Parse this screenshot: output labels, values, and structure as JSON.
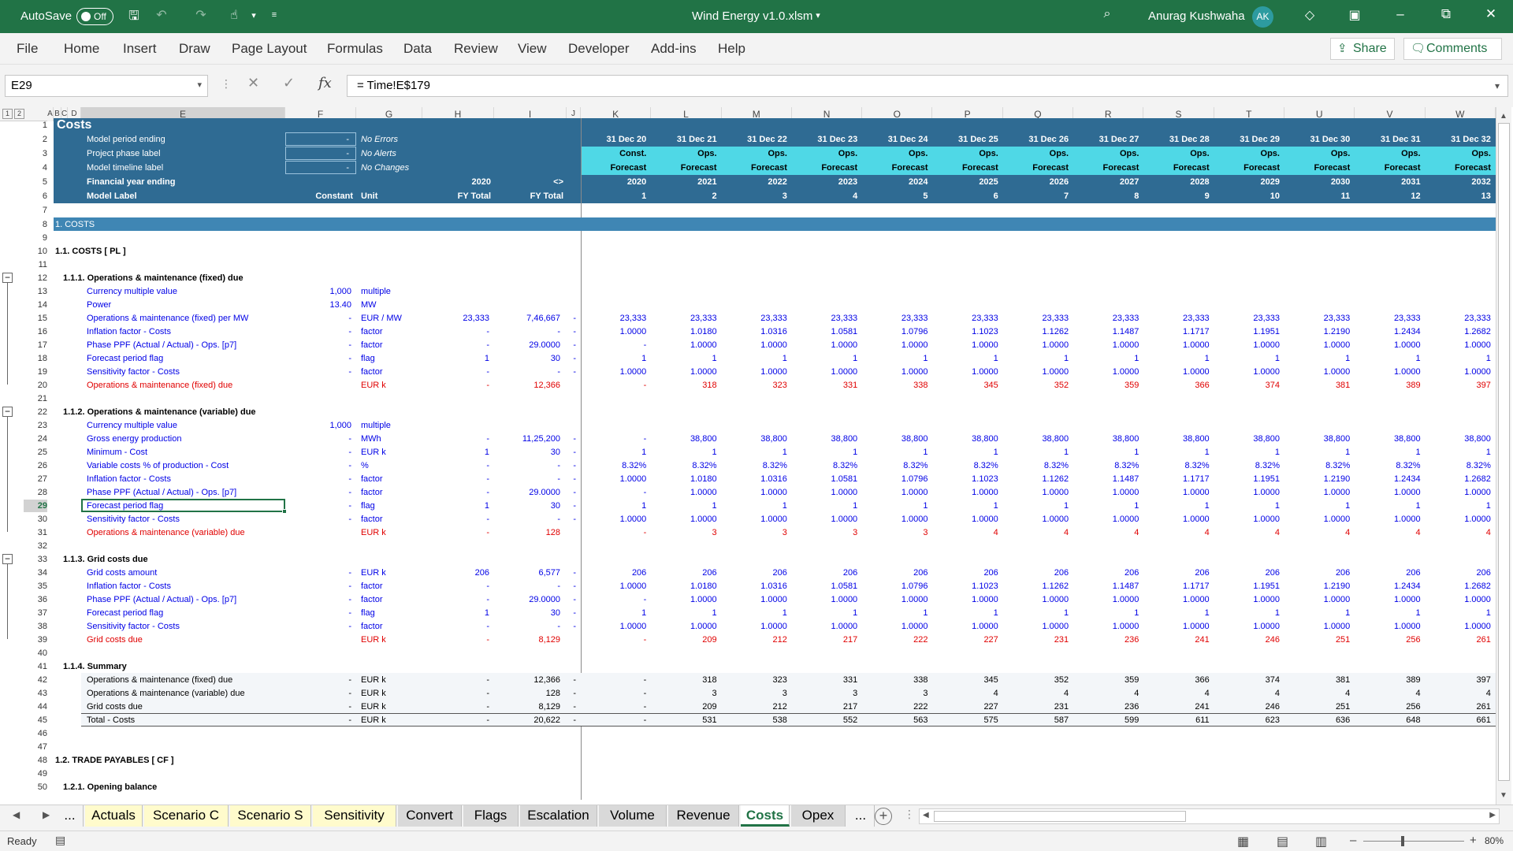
{
  "titlebar": {
    "autosave_label": "AutoSave",
    "toggle_state": "Off",
    "filename": "Wind Energy v1.0.xlsm",
    "user": "Anurag Kushwaha",
    "initials": "AK"
  },
  "ribbon": {
    "tabs": [
      "File",
      "Home",
      "Insert",
      "Draw",
      "Page Layout",
      "Formulas",
      "Data",
      "Review",
      "View",
      "Developer",
      "Add-ins",
      "Help"
    ],
    "share": "Share",
    "comments": "Comments"
  },
  "formula_bar": {
    "name_box": "E29",
    "formula": "= Time!E$179"
  },
  "col_letters": [
    "A",
    "B",
    "C",
    "D",
    "E",
    "F",
    "G",
    "H",
    "I",
    "J",
    "K",
    "L",
    "M",
    "N",
    "O",
    "P",
    "Q",
    "R",
    "S",
    "T",
    "U",
    "V",
    "W"
  ],
  "periods": {
    "dates": [
      "31 Dec 20",
      "31 Dec 21",
      "31 Dec 22",
      "31 Dec 23",
      "31 Dec 24",
      "31 Dec 25",
      "31 Dec 26",
      "31 Dec 27",
      "31 Dec 28",
      "31 Dec 29",
      "31 Dec 30",
      "31 Dec 31",
      "31 Dec 32"
    ],
    "phase": [
      "Const.",
      "Ops.",
      "Ops.",
      "Ops.",
      "Ops.",
      "Ops.",
      "Ops.",
      "Ops.",
      "Ops.",
      "Ops.",
      "Ops.",
      "Ops.",
      "Ops."
    ],
    "timeline": [
      "Forecast",
      "Forecast",
      "Forecast",
      "Forecast",
      "Forecast",
      "Forecast",
      "Forecast",
      "Forecast",
      "Forecast",
      "Forecast",
      "Forecast",
      "Forecast",
      "Forecast"
    ],
    "fy": [
      "2020",
      "2021",
      "2022",
      "2023",
      "2024",
      "2025",
      "2026",
      "2027",
      "2028",
      "2029",
      "2030",
      "2031",
      "2032"
    ],
    "counter": [
      "1",
      "2",
      "3",
      "4",
      "5",
      "6",
      "7",
      "8",
      "9",
      "10",
      "11",
      "12",
      "13"
    ]
  },
  "header_block": {
    "title": "Costs",
    "r2": {
      "label": "Model period ending",
      "box": "-",
      "status": "No Errors"
    },
    "r3": {
      "label": "Project phase label",
      "box": "-",
      "status": "No Alerts"
    },
    "r4": {
      "label": "Model timeline label",
      "box": "-",
      "status": "No Changes"
    },
    "r5": {
      "label": "Financial year ending",
      "h": "2020",
      "i": "<>"
    },
    "r6": {
      "label": "Model Label",
      "f": "Constant",
      "g": "Unit",
      "h": "FY Total",
      "i": "FY Total"
    }
  },
  "rows": [
    {
      "n": "8",
      "t": "band",
      "label": "1. COSTS"
    },
    {
      "n": "10",
      "t": "sec",
      "label": "1.1. COSTS [ PL ]"
    },
    {
      "n": "12",
      "t": "sub",
      "label": "1.1.1. Operations & maintenance (fixed) due"
    },
    {
      "n": "13",
      "t": "blu",
      "label": "Currency multiple value",
      "f": "1,000",
      "g": "multiple"
    },
    {
      "n": "14",
      "t": "blu",
      "label": "Power",
      "f": "13.40",
      "g": "MW"
    },
    {
      "n": "15",
      "t": "blu",
      "label": "Operations & maintenance (fixed) per MW",
      "f": "-",
      "g": "EUR / MW",
      "h": "23,333",
      "i": "7,46,667",
      "j": "-",
      "v": [
        "23,333",
        "23,333",
        "23,333",
        "23,333",
        "23,333",
        "23,333",
        "23,333",
        "23,333",
        "23,333",
        "23,333",
        "23,333",
        "23,333",
        "23,333"
      ]
    },
    {
      "n": "16",
      "t": "blu",
      "label": "Inflation factor - Costs",
      "f": "-",
      "g": "factor",
      "h": "-",
      "i": "-",
      "j": "-",
      "v": [
        "1.0000",
        "1.0180",
        "1.0316",
        "1.0581",
        "1.0796",
        "1.1023",
        "1.1262",
        "1.1487",
        "1.1717",
        "1.1951",
        "1.2190",
        "1.2434",
        "1.2682"
      ]
    },
    {
      "n": "17",
      "t": "blu",
      "label": "Phase PPF (Actual / Actual) - Ops. [p7]",
      "f": "-",
      "g": "factor",
      "h": "-",
      "i": "29.0000",
      "j": "-",
      "v": [
        "-",
        "1.0000",
        "1.0000",
        "1.0000",
        "1.0000",
        "1.0000",
        "1.0000",
        "1.0000",
        "1.0000",
        "1.0000",
        "1.0000",
        "1.0000",
        "1.0000"
      ]
    },
    {
      "n": "18",
      "t": "blu",
      "label": "Forecast period flag",
      "f": "-",
      "g": "flag",
      "h": "1",
      "i": "30",
      "j": "-",
      "v": [
        "1",
        "1",
        "1",
        "1",
        "1",
        "1",
        "1",
        "1",
        "1",
        "1",
        "1",
        "1",
        "1"
      ]
    },
    {
      "n": "19",
      "t": "blu",
      "label": "Sensitivity factor - Costs",
      "f": "-",
      "g": "factor",
      "h": "-",
      "i": "-",
      "j": "-",
      "v": [
        "1.0000",
        "1.0000",
        "1.0000",
        "1.0000",
        "1.0000",
        "1.0000",
        "1.0000",
        "1.0000",
        "1.0000",
        "1.0000",
        "1.0000",
        "1.0000",
        "1.0000"
      ]
    },
    {
      "n": "20",
      "t": "red",
      "label": "Operations & maintenance (fixed) due",
      "f": "",
      "g": "EUR k",
      "h": "-",
      "i": "12,366",
      "j": "",
      "v": [
        "-",
        "318",
        "323",
        "331",
        "338",
        "345",
        "352",
        "359",
        "366",
        "374",
        "381",
        "389",
        "397"
      ]
    },
    {
      "n": "22",
      "t": "sub",
      "label": "1.1.2. Operations & maintenance (variable) due"
    },
    {
      "n": "23",
      "t": "blu",
      "label": "Currency multiple value",
      "f": "1,000",
      "g": "multiple"
    },
    {
      "n": "24",
      "t": "blu",
      "label": "Gross energy production",
      "f": "-",
      "g": "MWh",
      "h": "-",
      "i": "11,25,200",
      "j": "-",
      "v": [
        "-",
        "38,800",
        "38,800",
        "38,800",
        "38,800",
        "38,800",
        "38,800",
        "38,800",
        "38,800",
        "38,800",
        "38,800",
        "38,800",
        "38,800"
      ]
    },
    {
      "n": "25",
      "t": "blu",
      "label": "Minimum - Cost",
      "f": "-",
      "g": "EUR k",
      "h": "1",
      "i": "30",
      "j": "-",
      "v": [
        "1",
        "1",
        "1",
        "1",
        "1",
        "1",
        "1",
        "1",
        "1",
        "1",
        "1",
        "1",
        "1"
      ]
    },
    {
      "n": "26",
      "t": "blu",
      "label": "Variable costs % of production - Cost",
      "f": "-",
      "g": "%",
      "h": "-",
      "i": "-",
      "j": "-",
      "v": [
        "8.32%",
        "8.32%",
        "8.32%",
        "8.32%",
        "8.32%",
        "8.32%",
        "8.32%",
        "8.32%",
        "8.32%",
        "8.32%",
        "8.32%",
        "8.32%",
        "8.32%"
      ]
    },
    {
      "n": "27",
      "t": "blu",
      "label": "Inflation factor - Costs",
      "f": "-",
      "g": "factor",
      "h": "-",
      "i": "-",
      "j": "-",
      "v": [
        "1.0000",
        "1.0180",
        "1.0316",
        "1.0581",
        "1.0796",
        "1.1023",
        "1.1262",
        "1.1487",
        "1.1717",
        "1.1951",
        "1.2190",
        "1.2434",
        "1.2682"
      ]
    },
    {
      "n": "28",
      "t": "blu",
      "label": "Phase PPF (Actual / Actual) - Ops. [p7]",
      "f": "-",
      "g": "factor",
      "h": "-",
      "i": "29.0000",
      "j": "-",
      "v": [
        "-",
        "1.0000",
        "1.0000",
        "1.0000",
        "1.0000",
        "1.0000",
        "1.0000",
        "1.0000",
        "1.0000",
        "1.0000",
        "1.0000",
        "1.0000",
        "1.0000"
      ]
    },
    {
      "n": "29",
      "t": "blu",
      "sel": true,
      "label": "Forecast period flag",
      "f": "-",
      "g": "flag",
      "h": "1",
      "i": "30",
      "j": "-",
      "v": [
        "1",
        "1",
        "1",
        "1",
        "1",
        "1",
        "1",
        "1",
        "1",
        "1",
        "1",
        "1",
        "1"
      ]
    },
    {
      "n": "30",
      "t": "blu",
      "label": "Sensitivity factor - Costs",
      "f": "-",
      "g": "factor",
      "h": "-",
      "i": "-",
      "j": "-",
      "v": [
        "1.0000",
        "1.0000",
        "1.0000",
        "1.0000",
        "1.0000",
        "1.0000",
        "1.0000",
        "1.0000",
        "1.0000",
        "1.0000",
        "1.0000",
        "1.0000",
        "1.0000"
      ]
    },
    {
      "n": "31",
      "t": "red",
      "label": "Operations & maintenance (variable) due",
      "f": "",
      "g": "EUR k",
      "h": "-",
      "i": "128",
      "j": "",
      "v": [
        "-",
        "3",
        "3",
        "3",
        "3",
        "4",
        "4",
        "4",
        "4",
        "4",
        "4",
        "4",
        "4"
      ]
    },
    {
      "n": "33",
      "t": "sub",
      "label": "1.1.3. Grid costs due"
    },
    {
      "n": "34",
      "t": "blu",
      "label": "Grid costs amount",
      "f": "-",
      "g": "EUR k",
      "h": "206",
      "i": "6,577",
      "j": "-",
      "v": [
        "206",
        "206",
        "206",
        "206",
        "206",
        "206",
        "206",
        "206",
        "206",
        "206",
        "206",
        "206",
        "206"
      ]
    },
    {
      "n": "35",
      "t": "blu",
      "label": "Inflation factor - Costs",
      "f": "-",
      "g": "factor",
      "h": "-",
      "i": "-",
      "j": "-",
      "v": [
        "1.0000",
        "1.0180",
        "1.0316",
        "1.0581",
        "1.0796",
        "1.1023",
        "1.1262",
        "1.1487",
        "1.1717",
        "1.1951",
        "1.2190",
        "1.2434",
        "1.2682"
      ]
    },
    {
      "n": "36",
      "t": "blu",
      "label": "Phase PPF (Actual / Actual) - Ops. [p7]",
      "f": "-",
      "g": "factor",
      "h": "-",
      "i": "29.0000",
      "j": "-",
      "v": [
        "-",
        "1.0000",
        "1.0000",
        "1.0000",
        "1.0000",
        "1.0000",
        "1.0000",
        "1.0000",
        "1.0000",
        "1.0000",
        "1.0000",
        "1.0000",
        "1.0000"
      ]
    },
    {
      "n": "37",
      "t": "blu",
      "label": "Forecast period flag",
      "f": "-",
      "g": "flag",
      "h": "1",
      "i": "30",
      "j": "-",
      "v": [
        "1",
        "1",
        "1",
        "1",
        "1",
        "1",
        "1",
        "1",
        "1",
        "1",
        "1",
        "1",
        "1"
      ]
    },
    {
      "n": "38",
      "t": "blu",
      "label": "Sensitivity factor - Costs",
      "f": "-",
      "g": "factor",
      "h": "-",
      "i": "-",
      "j": "-",
      "v": [
        "1.0000",
        "1.0000",
        "1.0000",
        "1.0000",
        "1.0000",
        "1.0000",
        "1.0000",
        "1.0000",
        "1.0000",
        "1.0000",
        "1.0000",
        "1.0000",
        "1.0000"
      ]
    },
    {
      "n": "39",
      "t": "red",
      "label": "Grid costs due",
      "f": "",
      "g": "EUR k",
      "h": "-",
      "i": "8,129",
      "j": "",
      "v": [
        "-",
        "209",
        "212",
        "217",
        "222",
        "227",
        "231",
        "236",
        "241",
        "246",
        "251",
        "256",
        "261"
      ]
    },
    {
      "n": "41",
      "t": "sub",
      "label": "1.1.4. Summary"
    },
    {
      "n": "42",
      "t": "sum",
      "label": "Operations & maintenance (fixed) due",
      "f": "-",
      "g": "EUR k",
      "h": "-",
      "i": "12,366",
      "j": "-",
      "v": [
        "-",
        "318",
        "323",
        "331",
        "338",
        "345",
        "352",
        "359",
        "366",
        "374",
        "381",
        "389",
        "397"
      ]
    },
    {
      "n": "43",
      "t": "sum",
      "label": "Operations & maintenance (variable) due",
      "f": "-",
      "g": "EUR k",
      "h": "-",
      "i": "128",
      "j": "-",
      "v": [
        "-",
        "3",
        "3",
        "3",
        "3",
        "4",
        "4",
        "4",
        "4",
        "4",
        "4",
        "4",
        "4"
      ]
    },
    {
      "n": "44",
      "t": "sum",
      "label": "Grid costs due",
      "f": "-",
      "g": "EUR k",
      "h": "-",
      "i": "8,129",
      "j": "-",
      "v": [
        "-",
        "209",
        "212",
        "217",
        "222",
        "227",
        "231",
        "236",
        "241",
        "246",
        "251",
        "256",
        "261"
      ]
    },
    {
      "n": "45",
      "t": "tot",
      "label": "Total - Costs",
      "f": "-",
      "g": "EUR k",
      "h": "-",
      "i": "20,622",
      "j": "-",
      "v": [
        "-",
        "531",
        "538",
        "552",
        "563",
        "575",
        "587",
        "599",
        "611",
        "623",
        "636",
        "648",
        "661"
      ]
    },
    {
      "n": "48",
      "t": "sec",
      "label": "1.2. TRADE PAYABLES [ CF ]"
    },
    {
      "n": "50",
      "t": "sub",
      "label": "1.2.1. Opening balance"
    }
  ],
  "sheet_tabs": [
    "...",
    "Actuals",
    "Scenario C",
    "Scenario S",
    "Sensitivity",
    "Convert",
    "Flags",
    "Escalation",
    "Volume",
    "Revenue",
    "Costs",
    "Opex",
    "..."
  ],
  "active_tab": "Costs",
  "status": {
    "ready": "Ready",
    "zoom": "80%"
  },
  "colors": {
    "excel_green": "#217346",
    "header_blue": "#2f6b93",
    "band_blue": "#3f86b4",
    "cyan": "#4fd8e6",
    "input_blue": "#0000e6",
    "output_red": "#e00000"
  }
}
